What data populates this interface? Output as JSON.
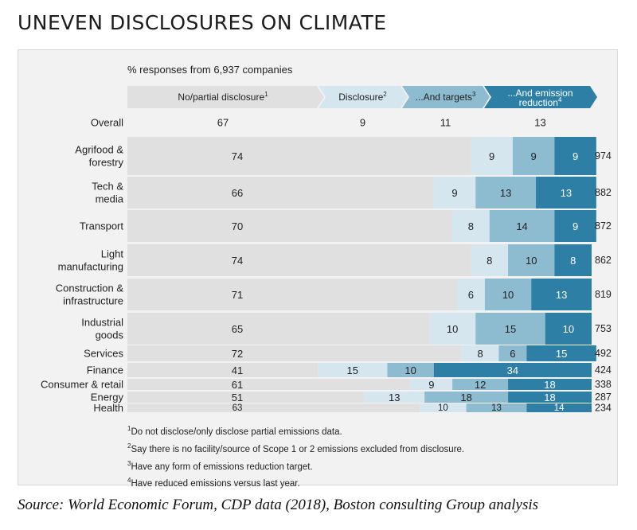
{
  "title": "UNEVEN DISCLOSURES ON CLIMATE",
  "chart_data": {
    "type": "bar",
    "subtitle": "% responses from 6,937 companies",
    "stacked": true,
    "orientation": "horizontal",
    "headers": [
      {
        "label": "No/partial disclosure",
        "note": "1"
      },
      {
        "label": "Disclosure",
        "note": "2"
      },
      {
        "label": "...And targets",
        "note": "3"
      },
      {
        "label": "...And emission reduction",
        "note": "4"
      }
    ],
    "overall": {
      "label": "Overall",
      "values": [
        67,
        9,
        11,
        13
      ]
    },
    "categories": [
      "Agrifood & forestry",
      "Tech & media",
      "Transport",
      "Light manufacturing",
      "Construction & infrastructure",
      "Industrial goods",
      "Services",
      "Finance",
      "Consumer & retail",
      "Energy",
      "Health"
    ],
    "series": [
      {
        "name": "No/partial disclosure",
        "color": "#e0e0e0",
        "values": [
          74,
          66,
          70,
          74,
          71,
          65,
          72,
          41,
          61,
          51,
          63
        ]
      },
      {
        "name": "Disclosure",
        "color": "#d6e6ef",
        "values": [
          9,
          9,
          8,
          8,
          6,
          10,
          8,
          15,
          9,
          13,
          10
        ]
      },
      {
        "name": "...And targets",
        "color": "#8dbbd0",
        "values": [
          9,
          13,
          14,
          10,
          10,
          15,
          6,
          10,
          12,
          18,
          13
        ]
      },
      {
        "name": "...And emission reduction",
        "color": "#2d7fa6",
        "values": [
          9,
          13,
          9,
          8,
          13,
          10,
          15,
          34,
          18,
          18,
          14
        ]
      }
    ],
    "company_counts": [
      974,
      882,
      872,
      862,
      819,
      753,
      492,
      424,
      338,
      287,
      234
    ],
    "xlim": [
      0,
      100
    ]
  },
  "footnotes": [
    {
      "mark": "1",
      "text": "Do not disclose/only disclose partial emissions data."
    },
    {
      "mark": "2",
      "text": "Say there is no facility/source of Scope 1 or 2 emissions excluded from disclosure."
    },
    {
      "mark": "3",
      "text": "Have any form of emissions reduction target."
    },
    {
      "mark": "4",
      "text": "Have reduced emissions versus last year."
    }
  ],
  "source": "Source: World Economic Forum, CDP data (2018), Boston consulting Group analysis"
}
